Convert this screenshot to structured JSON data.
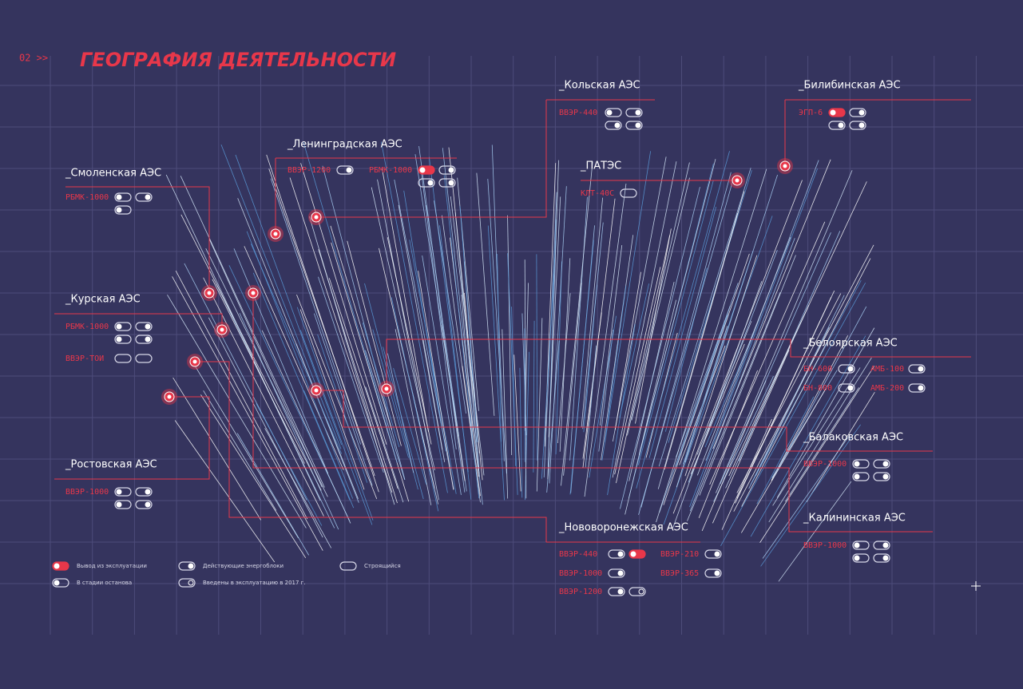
{
  "header": {
    "number": "02 >>",
    "title": "ГЕОГРАФИЯ ДЕЯТЕЛЬНОСТИ"
  },
  "plants": [
    {
      "name": "_Смоленская АЭС",
      "reactors": [
        "РБМК-1000"
      ]
    },
    {
      "name": "_Ленинградская АЭС",
      "reactors": [
        "ВВЭР-1200",
        "РБМК-1000"
      ]
    },
    {
      "name": "_Кольская АЭС",
      "reactors": [
        "ВВЭР-440"
      ]
    },
    {
      "name": "_Билибинская АЭС",
      "reactors": [
        "ЭГП-6"
      ]
    },
    {
      "name": "_ПАТЭС",
      "reactors": [
        "КЛТ-40С"
      ]
    },
    {
      "name": "_Курская АЭС",
      "reactors": [
        "РБМК-1000",
        "ВВЭР-ТОИ"
      ]
    },
    {
      "name": "_Ростовская АЭС",
      "reactors": [
        "ВВЭР-1000"
      ]
    },
    {
      "name": "_Белоярская АЭС",
      "reactors": [
        "БН-600",
        "АМБ-100",
        "БН-800",
        "АМБ-200"
      ]
    },
    {
      "name": "_Балаковская АЭС",
      "reactors": [
        "ВВЭР-1000"
      ]
    },
    {
      "name": "_Калининская АЭС",
      "reactors": [
        "ВВЭР-1000"
      ]
    },
    {
      "name": "_Нововоронежская АЭС",
      "reactors": [
        "ВВЭР-440",
        "ВВЭР-210",
        "ВВЭР-1000",
        "ВВЭР-365",
        "ВВЭР-1200"
      ]
    }
  ],
  "legend": [
    "Вывод из эксплуатации",
    "Действующие энергоблоки",
    "Строящийся",
    "В стадии останова",
    "Введены в эксплуатацию в 2017 г."
  ]
}
